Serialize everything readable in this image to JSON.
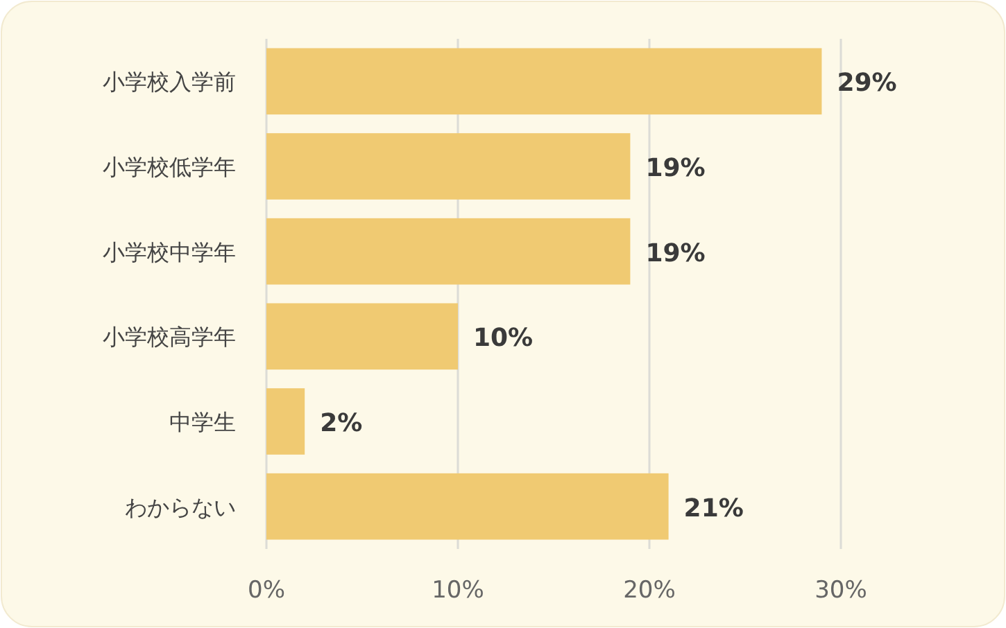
{
  "chart_data": {
    "type": "bar",
    "orientation": "horizontal",
    "categories": [
      "小学校入学前",
      "小学校低学年",
      "小学校中学年",
      "小学校高学年",
      "中学生",
      "わからない"
    ],
    "values": [
      29,
      19,
      19,
      10,
      2,
      21
    ],
    "color": "#f0ca72",
    "value_labels": [
      "29%",
      "19%",
      "19%",
      "10%",
      "2%",
      "21%"
    ],
    "xlim": [
      0,
      30
    ],
    "xticks": [
      {
        "value": 0,
        "label": "0%"
      },
      {
        "value": 10,
        "label": "10%"
      },
      {
        "value": 20,
        "label": "20%"
      },
      {
        "value": 30,
        "label": "30%"
      }
    ],
    "grid": "x"
  }
}
